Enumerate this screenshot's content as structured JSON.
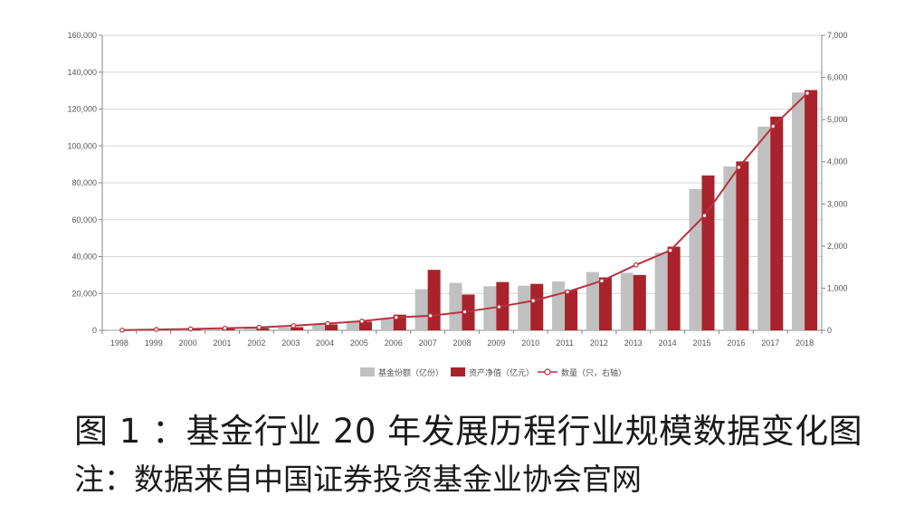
{
  "chart_data": {
    "type": "bar",
    "categories": [
      "1998",
      "1999",
      "2000",
      "2001",
      "2002",
      "2003",
      "2004",
      "2005",
      "2006",
      "2007",
      "2008",
      "2009",
      "2010",
      "2011",
      "2012",
      "2013",
      "2014",
      "2015",
      "2016",
      "2017",
      "2018"
    ],
    "series": [
      {
        "name": "基金份额（亿份）",
        "type": "bar",
        "axis": "left",
        "color": "#c0c0c0",
        "values": [
          100,
          480,
          560,
          800,
          1300,
          1600,
          3100,
          4700,
          6200,
          22300,
          25700,
          23900,
          24200,
          26500,
          31600,
          31200,
          42100,
          76600,
          88800,
          110500,
          129000
        ]
      },
      {
        "name": "资产净值（亿元）",
        "type": "bar",
        "axis": "left",
        "color": "#a8232b",
        "values": [
          100,
          500,
          850,
          800,
          1200,
          1700,
          3200,
          4700,
          8500,
          32800,
          19400,
          26200,
          25200,
          21900,
          28700,
          30000,
          45400,
          84000,
          91600,
          115900,
          130300
        ]
      },
      {
        "name": "数量（只，右轴）",
        "type": "line",
        "axis": "right",
        "color": "#b8323f",
        "values": [
          5,
          20,
          33,
          51,
          71,
          110,
          161,
          218,
          307,
          346,
          439,
          557,
          704,
          914,
          1173,
          1552,
          1897,
          2722,
          3867,
          4841,
          5626
        ]
      }
    ],
    "y_left": {
      "min": 0,
      "max": 160000,
      "ticks": [
        "0",
        "20,000",
        "40,000",
        "60,000",
        "80,000",
        "100,000",
        "120,000",
        "140,000",
        "160,000"
      ]
    },
    "y_right": {
      "min": 0,
      "max": 7000,
      "ticks": [
        "0",
        "1,000",
        "2,000",
        "3,000",
        "4,000",
        "5,000",
        "6,000",
        "7,000"
      ]
    },
    "grid": true,
    "legend_position": "bottom-center"
  },
  "caption": {
    "title": "图 1 ：基金行业 20 年发展历程行业规模数据变化图",
    "note": "注：数据来自中国证券投资基金业协会官网"
  },
  "colors": {
    "grid": "#d6d6d6",
    "axis": "#888888",
    "text": "#555555"
  }
}
